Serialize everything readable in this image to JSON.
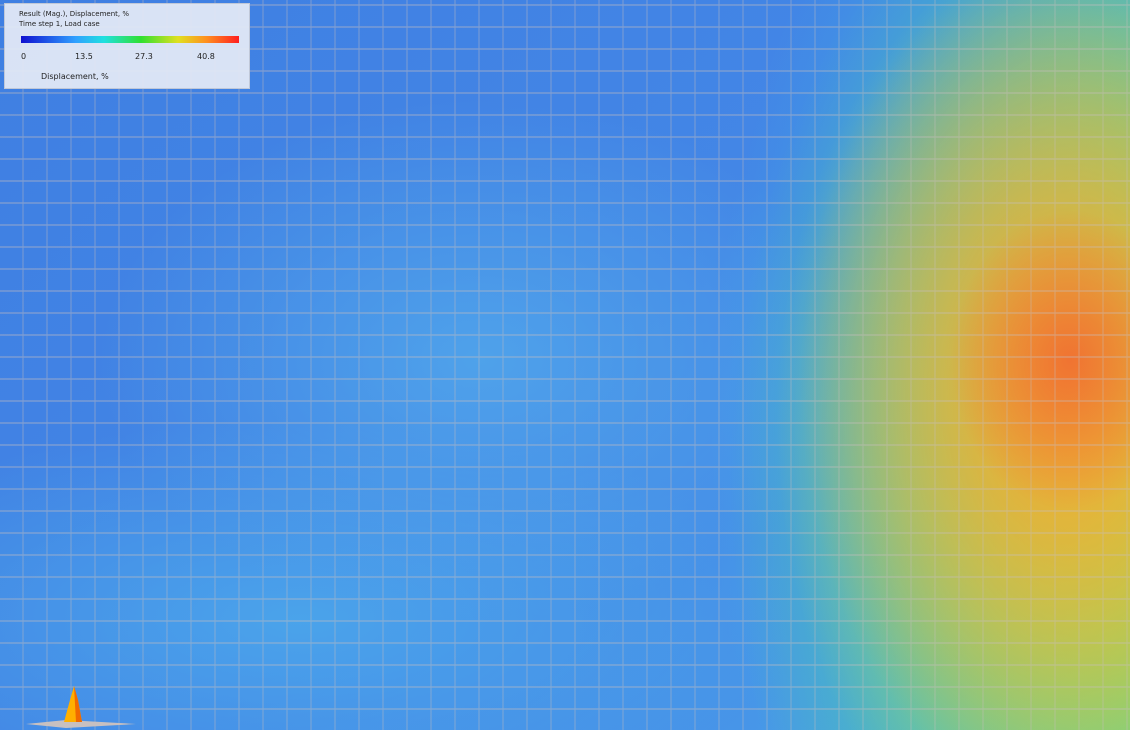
{
  "legend": {
    "title_line1": "Result (Mag.), Displacement, %",
    "title_line2": "Time step 1, Load case",
    "ticks": [
      "0",
      "13.5",
      "27.3",
      "40.8"
    ],
    "unit_label": "Displacement, %",
    "colormap": [
      "#1010d0",
      "#30a0ff",
      "#20e0e0",
      "#30e030",
      "#e0e020",
      "#ff9020",
      "#ff2020"
    ]
  },
  "field_colors": {
    "low": "#3f7fe2",
    "mid_low": "#4aa0ea",
    "cyan": "#3cd2e1",
    "green": "#5adc6e",
    "yellow": "#e6dc3c",
    "orange": "#f0a032",
    "peak": "#f06e32"
  },
  "marker_icon": "axis-triad-icon"
}
